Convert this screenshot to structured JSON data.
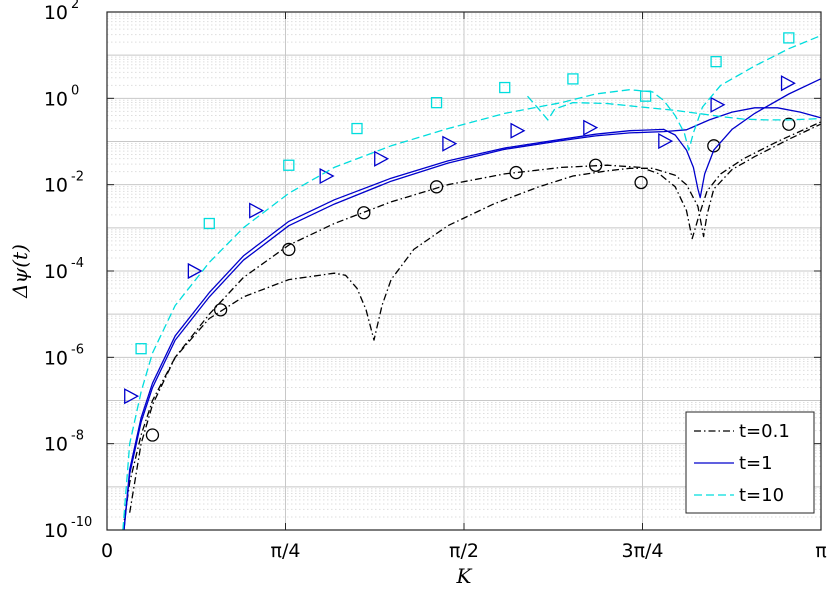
{
  "chart_data": {
    "type": "line",
    "xlabel": "K",
    "ylabel": "Δψ(t)",
    "y_scale": "log",
    "xlim": [
      0,
      3.14159
    ],
    "ylim_exponents": [
      -10,
      2
    ],
    "grid": "on (minor dotted)",
    "x_ticks": [
      {
        "value": 0,
        "label": "0"
      },
      {
        "value": 0.7854,
        "label": "π/4"
      },
      {
        "value": 1.5708,
        "label": "π/2"
      },
      {
        "value": 2.3562,
        "label": "3π/4"
      },
      {
        "value": 3.14159,
        "label": "π"
      }
    ],
    "y_ticks": [
      {
        "base": "10",
        "exp": "-10"
      },
      {
        "base": "10",
        "exp": "-8"
      },
      {
        "base": "10",
        "exp": "-6"
      },
      {
        "base": "10",
        "exp": "-4"
      },
      {
        "base": "10",
        "exp": "-2"
      },
      {
        "base": "10",
        "exp": "0"
      },
      {
        "base": "10",
        "exp": "2"
      }
    ],
    "legend_position": "bottom-right",
    "series": [
      {
        "name": "t=0.1",
        "color": "#000000",
        "style": "dash-dot",
        "marker": "circle",
        "lines": [
          [
            [
              0.07,
              -10.0
            ],
            [
              0.1,
              -8.9
            ],
            [
              0.15,
              -7.8
            ],
            [
              0.2,
              -7.0
            ],
            [
              0.3,
              -6.0
            ],
            [
              0.45,
              -5.1
            ],
            [
              0.6,
              -4.6
            ],
            [
              0.8,
              -4.2
            ],
            [
              1.0,
              -4.05
            ],
            [
              1.05,
              -4.1
            ],
            [
              1.1,
              -4.4
            ],
            [
              1.14,
              -4.9
            ],
            [
              1.175,
              -5.6
            ],
            [
              1.21,
              -4.8
            ],
            [
              1.25,
              -4.2
            ],
            [
              1.35,
              -3.5
            ],
            [
              1.5,
              -2.95
            ],
            [
              1.7,
              -2.45
            ],
            [
              1.9,
              -2.05
            ],
            [
              2.05,
              -1.8
            ],
            [
              2.2,
              -1.68
            ],
            [
              2.3,
              -1.62
            ],
            [
              2.4,
              -1.62
            ],
            [
              2.5,
              -1.78
            ],
            [
              2.55,
              -2.0
            ],
            [
              2.6,
              -2.5
            ],
            [
              2.625,
              -3.2
            ],
            [
              2.64,
              -2.7
            ],
            [
              2.67,
              -2.1
            ],
            [
              2.75,
              -1.65
            ],
            [
              2.85,
              -1.35
            ],
            [
              3.0,
              -0.95
            ],
            [
              3.14,
              -0.6
            ]
          ],
          [
            [
              0.1,
              -9.6
            ],
            [
              0.15,
              -8.0
            ],
            [
              0.2,
              -7.1
            ],
            [
              0.3,
              -6.0
            ],
            [
              0.45,
              -5.0
            ],
            [
              0.6,
              -4.15
            ],
            [
              0.8,
              -3.4
            ],
            [
              1.0,
              -2.9
            ],
            [
              1.25,
              -2.4
            ],
            [
              1.5,
              -2.0
            ],
            [
              1.75,
              -1.75
            ],
            [
              2.0,
              -1.6
            ],
            [
              2.2,
              -1.55
            ],
            [
              2.35,
              -1.6
            ],
            [
              2.43,
              -1.75
            ],
            [
              2.5,
              -2.05
            ],
            [
              2.55,
              -2.6
            ],
            [
              2.575,
              -3.25
            ],
            [
              2.6,
              -2.8
            ],
            [
              2.64,
              -2.15
            ],
            [
              2.7,
              -1.75
            ],
            [
              2.8,
              -1.4
            ],
            [
              2.95,
              -1.0
            ],
            [
              3.14,
              -0.55
            ]
          ]
        ],
        "markers": [
          [
            0.2,
            -7.8
          ],
          [
            0.5,
            -4.9
          ],
          [
            0.8,
            -3.5
          ],
          [
            1.13,
            -2.65
          ],
          [
            1.45,
            -2.05
          ],
          [
            1.8,
            -1.72
          ],
          [
            2.15,
            -1.55
          ],
          [
            2.35,
            -1.95
          ],
          [
            2.67,
            -1.1
          ],
          [
            3.0,
            -0.6
          ]
        ]
      },
      {
        "name": "t=1",
        "color": "#0000cc",
        "style": "solid",
        "marker": "triangle-right",
        "lines": [
          [
            [
              0.075,
              -10.0
            ],
            [
              0.1,
              -8.6
            ],
            [
              0.15,
              -7.4
            ],
            [
              0.2,
              -6.6
            ],
            [
              0.3,
              -5.5
            ],
            [
              0.45,
              -4.5
            ],
            [
              0.6,
              -3.65
            ],
            [
              0.8,
              -2.85
            ],
            [
              1.0,
              -2.35
            ],
            [
              1.25,
              -1.85
            ],
            [
              1.5,
              -1.45
            ],
            [
              1.75,
              -1.15
            ],
            [
              2.0,
              -0.95
            ],
            [
              2.15,
              -0.83
            ],
            [
              2.3,
              -0.75
            ],
            [
              2.45,
              -0.72
            ],
            [
              2.5,
              -0.85
            ],
            [
              2.55,
              -1.2
            ],
            [
              2.58,
              -1.6
            ],
            [
              2.6,
              -2.1
            ],
            [
              2.61,
              -2.3
            ],
            [
              2.63,
              -1.75
            ],
            [
              2.67,
              -1.2
            ],
            [
              2.75,
              -0.72
            ],
            [
              2.85,
              -0.35
            ],
            [
              3.0,
              0.1
            ],
            [
              3.14,
              0.45
            ]
          ],
          [
            [
              0.075,
              -10.0
            ],
            [
              0.1,
              -8.7
            ],
            [
              0.15,
              -7.5
            ],
            [
              0.2,
              -6.7
            ],
            [
              0.3,
              -5.6
            ],
            [
              0.45,
              -4.6
            ],
            [
              0.6,
              -3.75
            ],
            [
              0.8,
              -2.95
            ],
            [
              1.0,
              -2.45
            ],
            [
              1.25,
              -1.92
            ],
            [
              1.5,
              -1.5
            ],
            [
              1.75,
              -1.18
            ],
            [
              2.0,
              -0.98
            ],
            [
              2.15,
              -0.87
            ],
            [
              2.3,
              -0.8
            ],
            [
              2.45,
              -0.77
            ],
            [
              2.55,
              -0.73
            ],
            [
              2.65,
              -0.5
            ],
            [
              2.75,
              -0.32
            ],
            [
              2.85,
              -0.22
            ],
            [
              2.95,
              -0.22
            ],
            [
              3.05,
              -0.32
            ],
            [
              3.14,
              -0.45
            ]
          ]
        ],
        "markers": [
          [
            0.1,
            -6.9
          ],
          [
            0.38,
            -4.0
          ],
          [
            0.65,
            -2.6
          ],
          [
            0.96,
            -1.8
          ],
          [
            1.2,
            -1.4
          ],
          [
            1.5,
            -1.05
          ],
          [
            1.8,
            -0.75
          ],
          [
            2.12,
            -0.68
          ],
          [
            2.45,
            -0.99
          ],
          [
            2.68,
            -0.15
          ],
          [
            2.99,
            0.35
          ]
        ]
      },
      {
        "name": "t=10",
        "color": "#00dddd",
        "style": "dashed",
        "marker": "square",
        "lines": [
          [
            [
              0.07,
              -10.0
            ],
            [
              0.1,
              -8.0
            ],
            [
              0.15,
              -6.8
            ],
            [
              0.2,
              -5.9
            ],
            [
              0.3,
              -4.8
            ],
            [
              0.45,
              -3.8
            ],
            [
              0.6,
              -3.0
            ],
            [
              0.8,
              -2.2
            ],
            [
              1.0,
              -1.6
            ],
            [
              1.25,
              -1.1
            ],
            [
              1.5,
              -0.7
            ],
            [
              1.75,
              -0.35
            ],
            [
              2.0,
              -0.1
            ],
            [
              2.15,
              0.1
            ],
            [
              2.3,
              0.2
            ],
            [
              2.4,
              0.15
            ],
            [
              2.45,
              -0.05
            ],
            [
              2.5,
              -0.4
            ],
            [
              2.54,
              -0.8
            ],
            [
              2.56,
              -1.2
            ],
            [
              2.58,
              -0.8
            ],
            [
              2.62,
              -0.2
            ],
            [
              2.7,
              0.3
            ],
            [
              2.85,
              0.75
            ],
            [
              3.0,
              1.15
            ],
            [
              3.14,
              1.45
            ]
          ],
          [
            [
              1.85,
              0.05
            ],
            [
              1.9,
              -0.25
            ],
            [
              1.94,
              -0.5
            ],
            [
              1.97,
              -0.25
            ],
            [
              2.05,
              -0.1
            ],
            [
              2.2,
              -0.12
            ],
            [
              2.35,
              -0.2
            ],
            [
              2.5,
              -0.28
            ],
            [
              2.6,
              -0.35
            ],
            [
              2.7,
              -0.42
            ],
            [
              2.8,
              -0.48
            ],
            [
              2.9,
              -0.5
            ],
            [
              3.0,
              -0.5
            ],
            [
              3.14,
              -0.47
            ]
          ]
        ],
        "markers": [
          [
            0.15,
            -5.8
          ],
          [
            0.45,
            -2.9
          ],
          [
            0.8,
            -1.55
          ],
          [
            1.1,
            -0.7
          ],
          [
            1.45,
            -0.1
          ],
          [
            1.75,
            0.25
          ],
          [
            2.05,
            0.45
          ],
          [
            2.37,
            0.05
          ],
          [
            2.68,
            0.85
          ],
          [
            3.0,
            1.4
          ]
        ]
      }
    ]
  }
}
